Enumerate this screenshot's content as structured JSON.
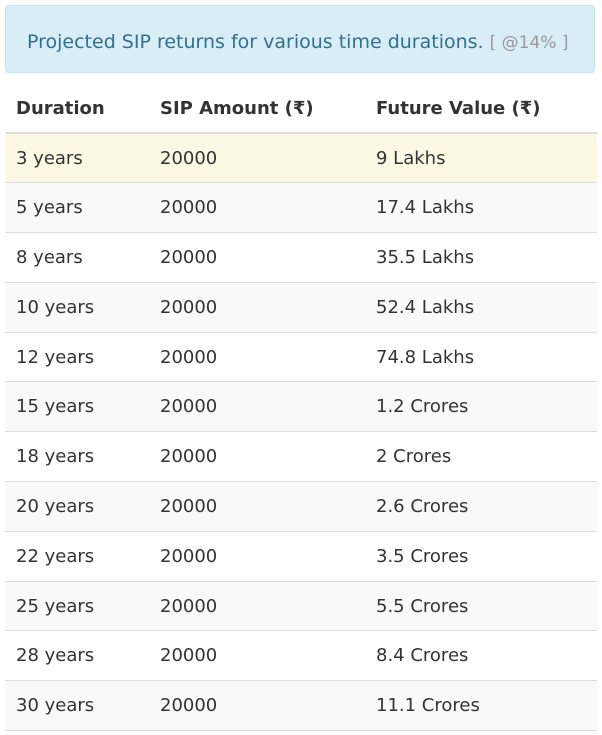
{
  "info": {
    "text": "Projected SIP returns for various time durations.",
    "rate": "[ @14% ]"
  },
  "table": {
    "headers": [
      "Duration",
      "SIP Amount (₹)",
      "Future Value (₹)"
    ],
    "rows": [
      [
        "3 years",
        "20000",
        "9 Lakhs"
      ],
      [
        "5 years",
        "20000",
        "17.4 Lakhs"
      ],
      [
        "8 years",
        "20000",
        "35.5 Lakhs"
      ],
      [
        "10 years",
        "20000",
        "52.4 Lakhs"
      ],
      [
        "12 years",
        "20000",
        "74.8 Lakhs"
      ],
      [
        "15 years",
        "20000",
        "1.2 Crores"
      ],
      [
        "18 years",
        "20000",
        "2 Crores"
      ],
      [
        "20 years",
        "20000",
        "2.6 Crores"
      ],
      [
        "22 years",
        "20000",
        "3.5 Crores"
      ],
      [
        "25 years",
        "20000",
        "5.5 Crores"
      ],
      [
        "28 years",
        "20000",
        "8.4 Crores"
      ],
      [
        "30 years",
        "20000",
        "11.1 Crores"
      ]
    ]
  },
  "colors": {
    "info_bg": "#d9edf7",
    "info_text": "#31708f",
    "highlight_row": "#fcf8e3",
    "stripe_row": "#f9f9f9"
  }
}
